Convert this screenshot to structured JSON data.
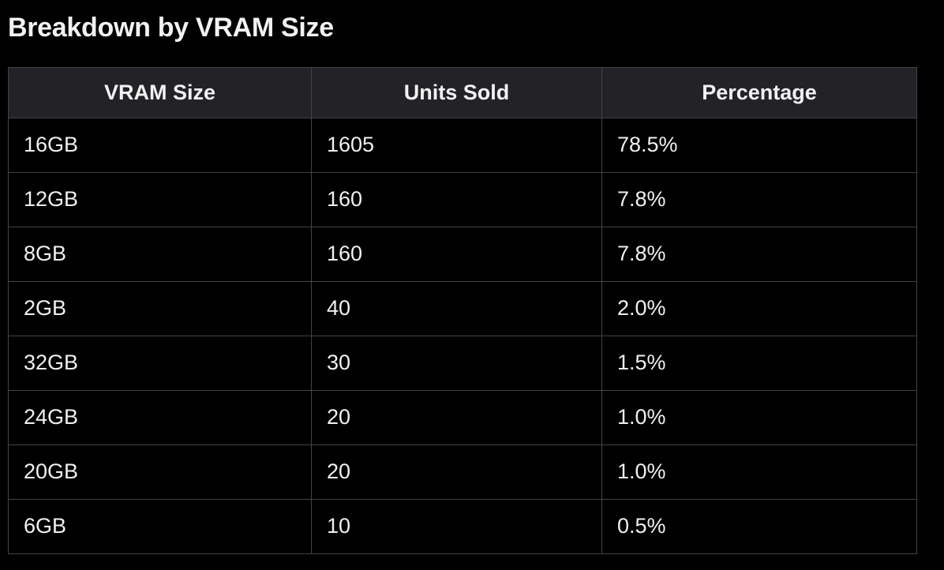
{
  "page": {
    "title": "Breakdown by VRAM Size",
    "background_color": "#000000",
    "header_bg_color": "#232327",
    "border_color": "#434347",
    "text_color": "#f0f0f1"
  },
  "table": {
    "columns": [
      "VRAM Size",
      "Units Sold",
      "Percentage"
    ],
    "rows": [
      [
        "16GB",
        "1605",
        "78.5%"
      ],
      [
        "12GB",
        "160",
        "7.8%"
      ],
      [
        "8GB",
        "160",
        "7.8%"
      ],
      [
        "2GB",
        "40",
        "2.0%"
      ],
      [
        "32GB",
        "30",
        "1.5%"
      ],
      [
        "24GB",
        "20",
        "1.0%"
      ],
      [
        "20GB",
        "20",
        "1.0%"
      ],
      [
        "6GB",
        "10",
        "0.5%"
      ]
    ]
  },
  "chart_data": {
    "type": "table",
    "title": "Breakdown by VRAM Size",
    "columns": [
      "VRAM Size",
      "Units Sold",
      "Percentage"
    ],
    "categories": [
      "16GB",
      "12GB",
      "8GB",
      "2GB",
      "32GB",
      "24GB",
      "20GB",
      "6GB"
    ],
    "series": [
      {
        "name": "Units Sold",
        "values": [
          1605,
          160,
          160,
          40,
          30,
          20,
          20,
          10
        ]
      },
      {
        "name": "Percentage",
        "values": [
          78.5,
          7.8,
          7.8,
          2.0,
          1.5,
          1.0,
          1.0,
          0.5
        ]
      }
    ],
    "legend_position": "none",
    "grid": true
  }
}
